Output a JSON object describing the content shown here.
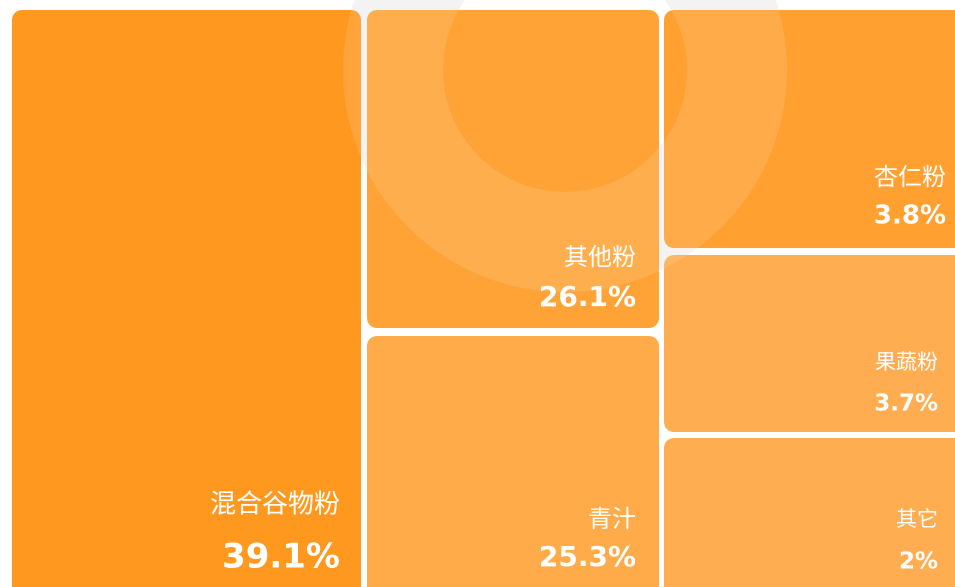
{
  "chart_data": {
    "type": "treemap",
    "categories": [
      "混合谷物粉",
      "其他粉",
      "青汁",
      "杏仁粉",
      "果蔬粉",
      "其它"
    ],
    "values": [
      39.1,
      26.1,
      25.3,
      3.8,
      3.7,
      2
    ],
    "value_labels": [
      "39.1%",
      "26.1%",
      "25.3%",
      "3.8%",
      "3.7%",
      "2%"
    ],
    "colors": [
      "#ff981f",
      "#ffa336",
      "#ffab4a",
      "#ffa030",
      "#ffad50",
      "#ffad50"
    ]
  }
}
